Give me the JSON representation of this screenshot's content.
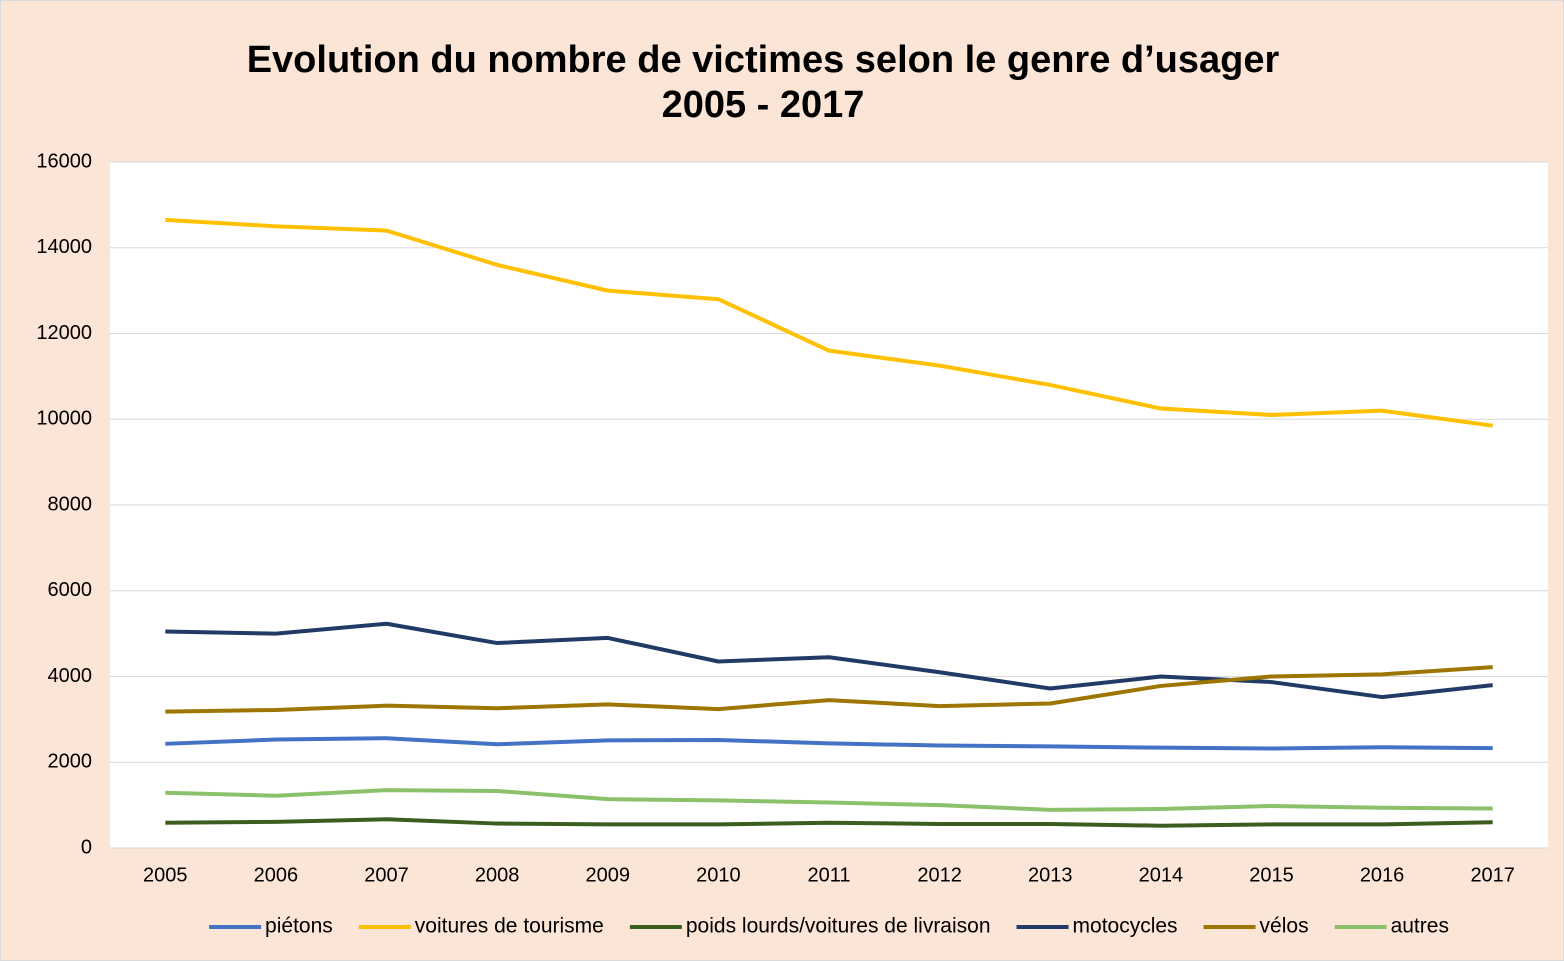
{
  "chart_data": {
    "type": "line",
    "title": "Evolution du nombre de victimes selon le genre d’usager",
    "subtitle": "2005 - 2017",
    "categories": [
      "2005",
      "2006",
      "2007",
      "2008",
      "2009",
      "2010",
      "2011",
      "2012",
      "2013",
      "2014",
      "2015",
      "2016",
      "2017"
    ],
    "series": [
      {
        "name": "piétons",
        "color": "#4472c4",
        "values": [
          2430,
          2530,
          2560,
          2420,
          2510,
          2520,
          2440,
          2390,
          2370,
          2340,
          2320,
          2350,
          2330
        ]
      },
      {
        "name": "voitures de tourisme",
        "color": "#ffc000",
        "values": [
          14650,
          14500,
          14400,
          13600,
          13000,
          12800,
          11600,
          11250,
          10800,
          10250,
          10100,
          10200,
          9850
        ]
      },
      {
        "name": "poids lourds/voitures de livraison",
        "color": "#3b5e20",
        "values": [
          590,
          610,
          670,
          570,
          550,
          550,
          590,
          560,
          560,
          520,
          550,
          550,
          600
        ]
      },
      {
        "name": "motocycles",
        "color": "#213a66",
        "values": [
          5050,
          5000,
          5230,
          4780,
          4900,
          4350,
          4450,
          4100,
          3720,
          4000,
          3870,
          3520,
          3800
        ]
      },
      {
        "name": "vélos",
        "color": "#9c7600",
        "values": [
          3180,
          3220,
          3320,
          3260,
          3350,
          3240,
          3450,
          3310,
          3370,
          3780,
          4000,
          4050,
          4220
        ]
      },
      {
        "name": "autres",
        "color": "#8cc16c",
        "values": [
          1290,
          1220,
          1350,
          1330,
          1140,
          1110,
          1060,
          1000,
          890,
          910,
          980,
          940,
          920
        ]
      }
    ],
    "ylim": [
      0,
      16000
    ],
    "yticks": [
      0,
      2000,
      4000,
      6000,
      8000,
      10000,
      12000,
      14000,
      16000
    ],
    "grid": true,
    "legend": "bottom"
  }
}
